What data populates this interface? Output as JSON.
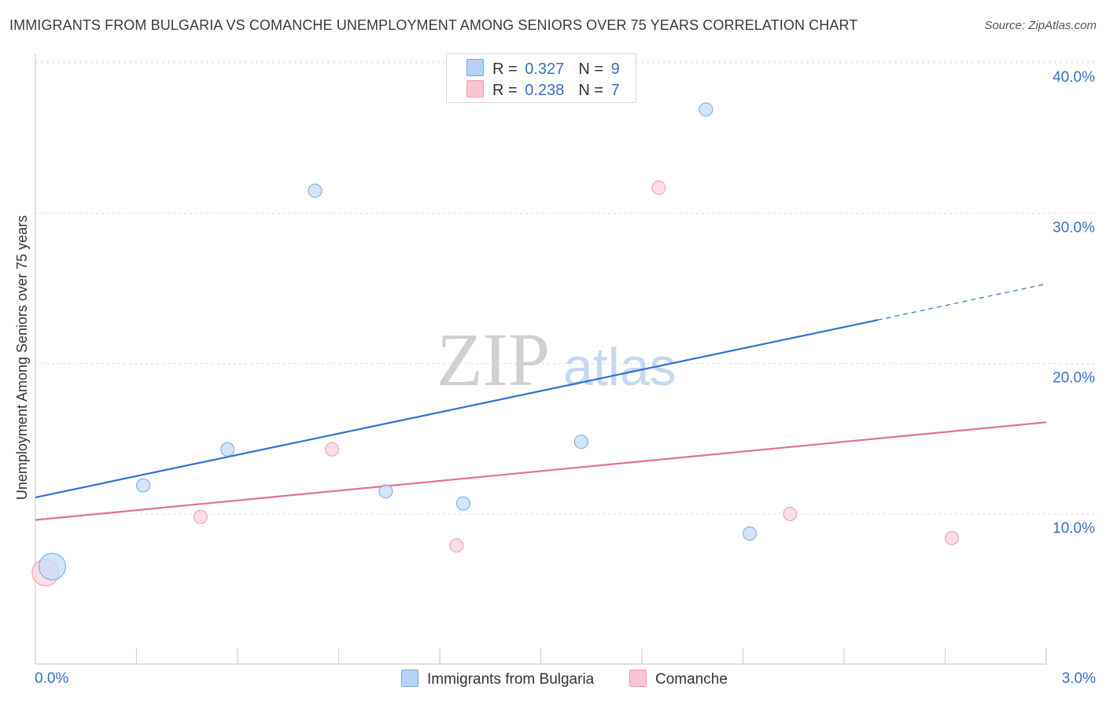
{
  "title": "IMMIGRANTS FROM BULGARIA VS COMANCHE UNEMPLOYMENT AMONG SENIORS OVER 75 YEARS CORRELATION CHART",
  "source": "Source: ZipAtlas.com",
  "watermark": {
    "part1": "ZIP",
    "part2": "atlas"
  },
  "legend": {
    "rows": [
      {
        "r_label": "R =",
        "r_value": "0.327",
        "n_label": "N =",
        "n_value": "9",
        "color": "#b7d2f5"
      },
      {
        "r_label": "R =",
        "r_value": "0.238",
        "n_label": "N =",
        "n_value": "7",
        "color": "#f8c5d3"
      }
    ]
  },
  "bottom_legend": [
    {
      "label": "Immigrants from Bulgaria",
      "color": "#b7d2f5"
    },
    {
      "label": "Comanche",
      "color": "#f8c5d3"
    }
  ],
  "colors": {
    "blue_line": "#2f73d0",
    "pink_line": "#e0709a",
    "blue_point_fill": "#c5dcf7",
    "blue_point_stroke": "#7aa6e0",
    "pink_point_fill": "#fbd3de",
    "pink_point_stroke": "#ef9ab4",
    "tick_text": "#3a6fc4"
  },
  "chart_data": {
    "type": "scatter",
    "title": "IMMIGRANTS FROM BULGARIA VS COMANCHE UNEMPLOYMENT AMONG SENIORS OVER 75 YEARS CORRELATION CHART",
    "xlabel": "",
    "ylabel": "Unemployment Among Seniors over 75 years",
    "xlim": [
      0,
      3.0
    ],
    "ylim": [
      0,
      41
    ],
    "x_tick_labels": [
      {
        "value": 0,
        "label": "0.0%"
      },
      {
        "value": 3.0,
        "label": "3.0%"
      }
    ],
    "y_tick_labels": [
      {
        "value": 10,
        "label": "10.0%"
      },
      {
        "value": 20,
        "label": "20.0%"
      },
      {
        "value": 30,
        "label": "30.0%"
      },
      {
        "value": 40,
        "label": "40.0%"
      }
    ],
    "grid": true,
    "legend_position": "top-center",
    "series": [
      {
        "name": "Immigrants from Bulgaria",
        "r": 0.327,
        "n": 9,
        "points": [
          {
            "x": 0.05,
            "y": 6.5,
            "size": "large"
          },
          {
            "x": 0.32,
            "y": 11.9
          },
          {
            "x": 0.57,
            "y": 14.3
          },
          {
            "x": 0.83,
            "y": 31.5
          },
          {
            "x": 1.04,
            "y": 11.5
          },
          {
            "x": 1.27,
            "y": 10.7
          },
          {
            "x": 1.62,
            "y": 14.8
          },
          {
            "x": 1.99,
            "y": 36.9
          },
          {
            "x": 2.12,
            "y": 8.7
          }
        ],
        "trend": {
          "x_start": 0.0,
          "y_start": 11.1,
          "x_solid_end": 2.5,
          "y_solid_end": 22.9,
          "x_end": 3.0,
          "y_end": 25.3
        }
      },
      {
        "name": "Comanche",
        "r": 0.238,
        "n": 7,
        "points": [
          {
            "x": 0.03,
            "y": 6.1,
            "size": "large"
          },
          {
            "x": 0.49,
            "y": 9.8
          },
          {
            "x": 0.88,
            "y": 14.3
          },
          {
            "x": 1.25,
            "y": 7.9
          },
          {
            "x": 1.85,
            "y": 31.7
          },
          {
            "x": 2.24,
            "y": 10.0
          },
          {
            "x": 2.72,
            "y": 8.4
          }
        ],
        "trend": {
          "x_start": 0.0,
          "y_start": 9.6,
          "x_end": 3.0,
          "y_end": 16.1
        }
      }
    ]
  }
}
